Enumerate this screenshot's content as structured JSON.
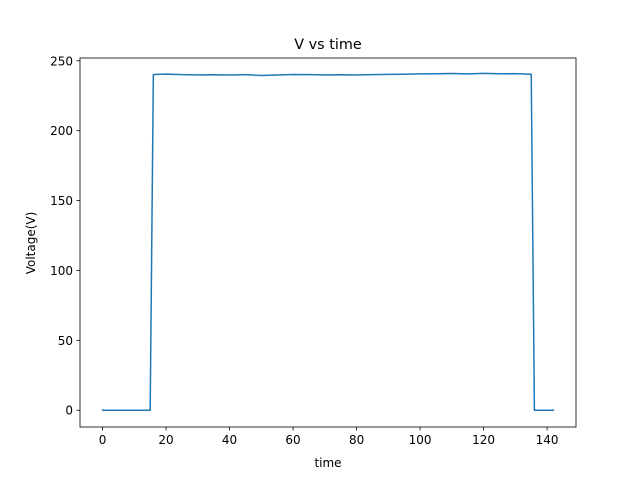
{
  "chart_data": {
    "type": "line",
    "title": "V vs time",
    "xlabel": "time",
    "ylabel": "Voltage(V)",
    "xlim": [
      -7.1,
      149.1
    ],
    "ylim": [
      -12.0,
      252.0
    ],
    "xticks": [
      0,
      20,
      40,
      60,
      80,
      100,
      120,
      140
    ],
    "yticks": [
      0,
      50,
      100,
      150,
      200,
      250
    ],
    "grid": false,
    "series": [
      {
        "color": "#1f77b4",
        "x": [
          0,
          15,
          16,
          20,
          25,
          30,
          35,
          40,
          45,
          50,
          55,
          60,
          65,
          70,
          75,
          80,
          85,
          90,
          95,
          100,
          105,
          110,
          115,
          120,
          125,
          130,
          135,
          136,
          142
        ],
        "y": [
          0,
          0,
          240.2,
          240.5,
          240.1,
          239.9,
          240.0,
          239.8,
          240.1,
          239.5,
          239.8,
          240.2,
          240.1,
          239.9,
          240.0,
          239.8,
          240.1,
          240.3,
          240.4,
          240.6,
          240.7,
          240.9,
          240.6,
          241.0,
          240.7,
          240.8,
          240.4,
          0,
          0
        ]
      }
    ]
  }
}
